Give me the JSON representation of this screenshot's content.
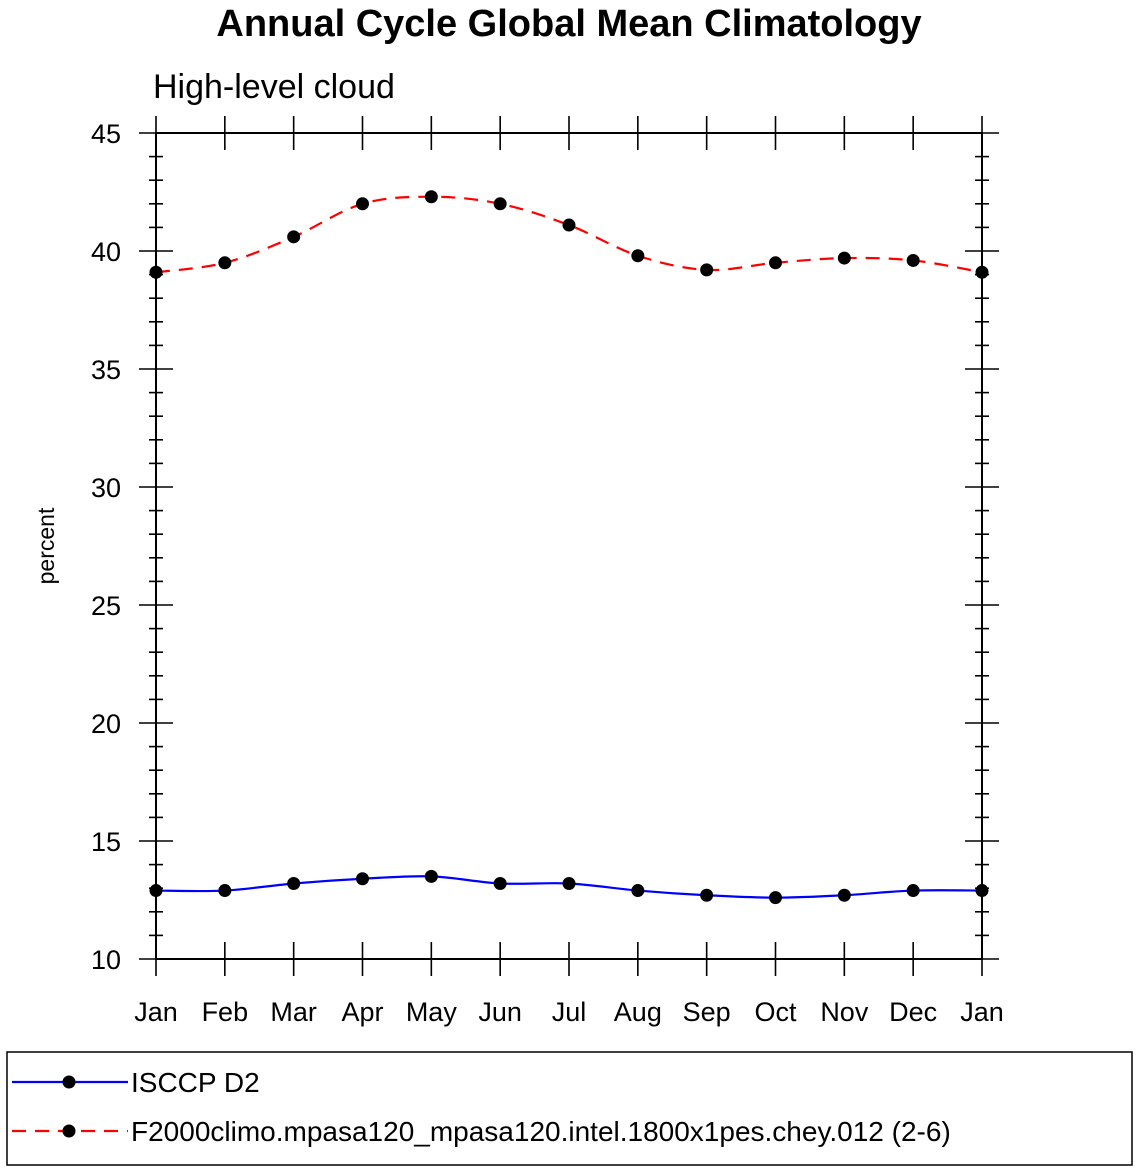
{
  "chart_data": {
    "type": "line",
    "title": "Annual Cycle Global Mean Climatology",
    "subtitle": "High-level cloud",
    "xlabel": "",
    "ylabel": "percent",
    "categories": [
      "Jan",
      "Feb",
      "Mar",
      "Apr",
      "May",
      "Jun",
      "Jul",
      "Aug",
      "Sep",
      "Oct",
      "Nov",
      "Dec",
      "Jan"
    ],
    "ylim": [
      10,
      45
    ],
    "yticks": [
      10,
      15,
      20,
      25,
      30,
      35,
      40,
      45
    ],
    "series": [
      {
        "name": "ISCCP D2",
        "color": "#0000ff",
        "line_style": "solid",
        "marker": "filled-circle",
        "values": [
          12.9,
          12.9,
          13.2,
          13.4,
          13.5,
          13.2,
          13.2,
          12.9,
          12.7,
          12.6,
          12.7,
          12.9,
          12.9
        ]
      },
      {
        "name": "F2000climo.mpasa120_mpasa120.intel.1800x1pes.chey.012 (2-6)",
        "color": "#ff0000",
        "line_style": "dashed",
        "marker": "filled-circle",
        "values": [
          39.1,
          39.5,
          40.6,
          42.0,
          42.3,
          42.0,
          41.1,
          39.8,
          39.2,
          39.5,
          39.7,
          39.6,
          39.1
        ]
      }
    ],
    "grid": false,
    "legend_position": "bottom"
  }
}
